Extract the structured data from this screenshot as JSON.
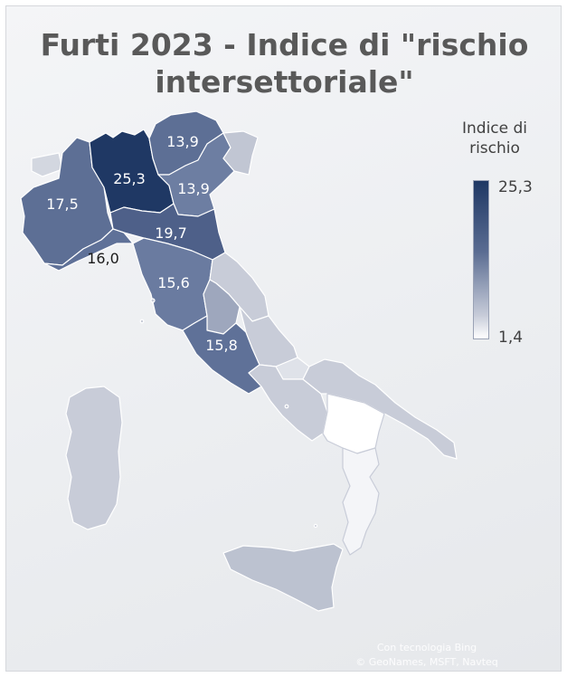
{
  "title": "Furti 2023  - Indice di \"rischio\nintersettoriale\"",
  "legend": {
    "title": "Indice di\nrischio",
    "max": "25,3",
    "min": "1,4",
    "color_max": "#1f3864",
    "color_min": "#ffffff"
  },
  "labels": {
    "trentino": "13,9",
    "lombardia": "25,3",
    "veneto": "13,9",
    "piemonte": "17,5",
    "emilia_romagna": "19,7",
    "liguria": "16,0",
    "toscana": "15,6",
    "lazio": "15,8"
  },
  "credits": {
    "line1": "Con tecnologia Bing",
    "line2": "© GeoNames, MSFT, Navteq"
  }
}
